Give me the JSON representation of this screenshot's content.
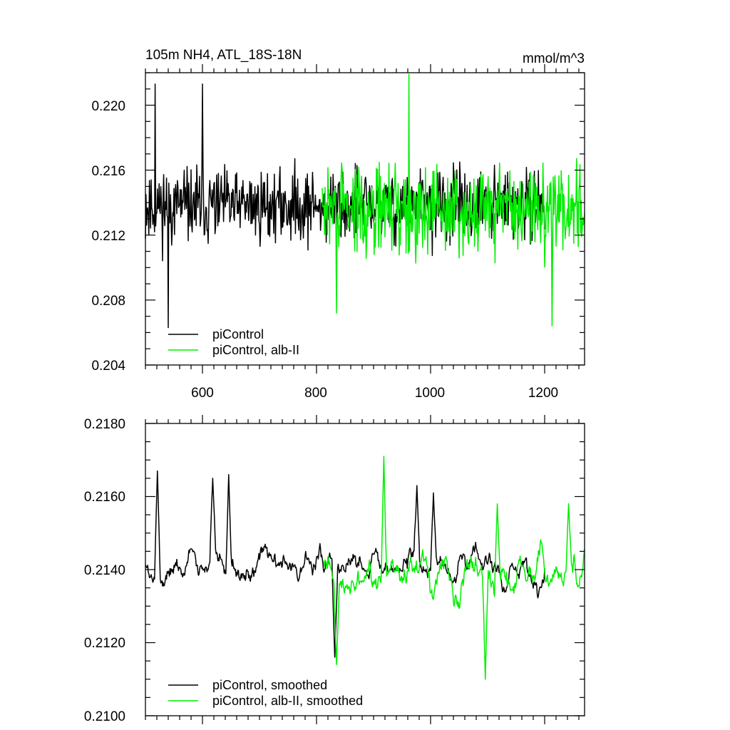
{
  "chart_data": [
    {
      "type": "line",
      "title": "105m NH4, ATL_18S-18N",
      "units": "mmol/m^3",
      "xlim": [
        500,
        1270
      ],
      "ylim": [
        0.204,
        0.222
      ],
      "xticks": [
        "600",
        "800",
        "1000",
        "1200"
      ],
      "yticks": [
        "0.204",
        "0.208",
        "0.212",
        "0.216",
        "0.220"
      ],
      "legend_position": "bottom-left",
      "series": [
        {
          "name": "piControl",
          "color": "#000000",
          "x_range": [
            500,
            1200
          ],
          "mean": 0.2138,
          "amplitude": 0.0022,
          "extremes": [
            [
              517,
              0.2213
            ],
            [
              540,
              0.2063
            ],
            [
              600,
              0.2213
            ]
          ],
          "seed": 11
        },
        {
          "name": "piControl, alb-II",
          "color": "#00ee00",
          "x_range": [
            810,
            1270
          ],
          "mean": 0.2136,
          "amplitude": 0.0026,
          "extremes": [
            [
              962,
              0.2219
            ],
            [
              835,
              0.2072
            ],
            [
              1213,
              0.2064
            ]
          ],
          "seed": 29
        }
      ]
    },
    {
      "type": "line",
      "title": "",
      "xlim": [
        500,
        1270
      ],
      "ylim": [
        0.21,
        0.218
      ],
      "xticks": [],
      "yticks": [
        "0.2100",
        "0.2120",
        "0.2140",
        "0.2160",
        "0.2180"
      ],
      "legend_position": "bottom-left",
      "series": [
        {
          "name": "piControl, smoothed",
          "color": "#000000",
          "x_range": [
            500,
            1200
          ],
          "mean": 0.2141,
          "amplitude": 0.0007,
          "extremes": [
            [
              521,
              0.2167
            ],
            [
              618,
              0.2165
            ],
            [
              646,
              0.2166
            ],
            [
              976,
              0.2163
            ],
            [
              1005,
              0.2161
            ],
            [
              832,
              0.2116
            ]
          ],
          "seed": 5
        },
        {
          "name": "piControl, alb-II, smoothed",
          "color": "#00ee00",
          "x_range": [
            812,
            1270
          ],
          "mean": 0.2138,
          "amplitude": 0.0009,
          "extremes": [
            [
              918,
              0.2171
            ],
            [
              835,
              0.2114
            ],
            [
              1096,
              0.211
            ],
            [
              1117,
              0.2158
            ],
            [
              1242,
              0.2158
            ]
          ],
          "seed": 41
        }
      ]
    }
  ]
}
